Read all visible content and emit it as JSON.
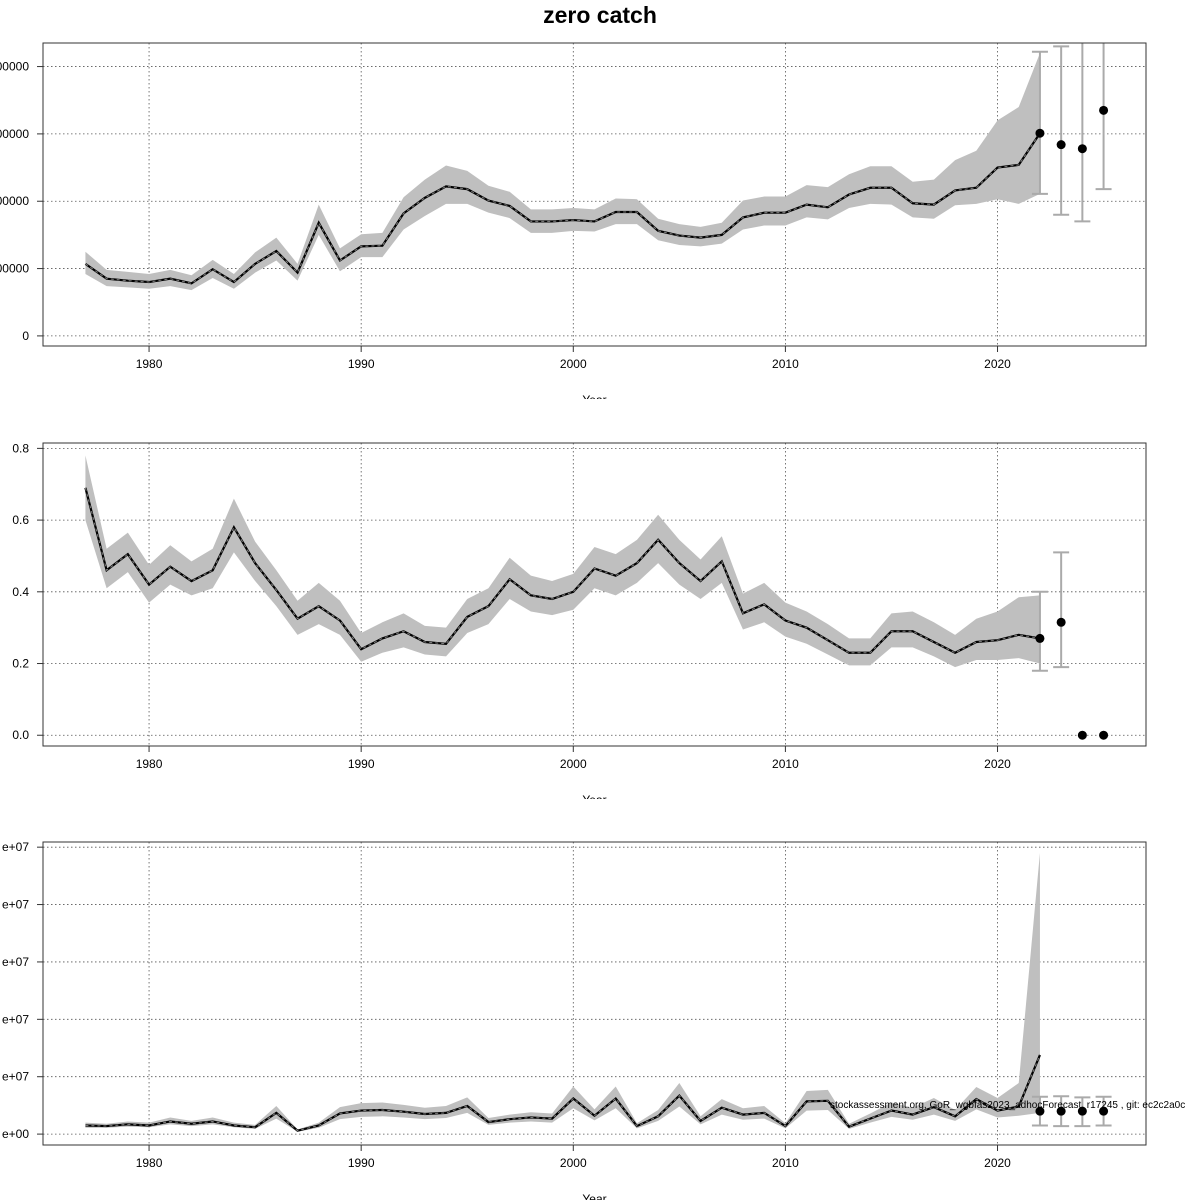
{
  "title": "zero catch",
  "watermark": "stockassessment.org, GoR_wgbfas2023_adhocForecast, r17245 , git: ec2c2a0c",
  "chart_data": [
    {
      "type": "area",
      "name": "top-panel",
      "xlabel": "Year",
      "xlim": [
        1975,
        2027
      ],
      "ylim": [
        -15000,
        435000
      ],
      "xticks": [
        1980,
        1990,
        2000,
        2010,
        2020
      ],
      "yticks": [
        0,
        100000,
        200000,
        300000,
        400000
      ],
      "ytick_labels": [
        "0",
        "00000",
        "00000",
        "00000",
        "00000"
      ],
      "grid": true,
      "years": [
        1977,
        1978,
        1979,
        1980,
        1981,
        1982,
        1983,
        1984,
        1985,
        1986,
        1987,
        1988,
        1989,
        1990,
        1991,
        1992,
        1993,
        1994,
        1995,
        1996,
        1997,
        1998,
        1999,
        2000,
        2001,
        2002,
        2003,
        2004,
        2005,
        2006,
        2007,
        2008,
        2009,
        2010,
        2011,
        2012,
        2013,
        2014,
        2015,
        2016,
        2017,
        2018,
        2019,
        2020,
        2021,
        2022
      ],
      "estimate": [
        107000,
        85000,
        82000,
        80000,
        85000,
        78000,
        99000,
        80000,
        107000,
        126000,
        94000,
        168000,
        112000,
        133000,
        134000,
        182000,
        205000,
        222000,
        218000,
        201000,
        193000,
        170000,
        170000,
        172000,
        170000,
        184000,
        184000,
        156000,
        149000,
        146000,
        150000,
        176000,
        183000,
        183000,
        195000,
        191000,
        210000,
        220000,
        220000,
        197000,
        195000,
        216000,
        220000,
        250000,
        254000,
        301000
      ],
      "lower": [
        92000,
        74000,
        72000,
        70000,
        74000,
        68000,
        86000,
        70000,
        94000,
        112000,
        82000,
        150000,
        96000,
        117000,
        117000,
        158000,
        178000,
        196000,
        196000,
        183000,
        175000,
        153000,
        153000,
        156000,
        155000,
        166000,
        166000,
        142000,
        135000,
        133000,
        137000,
        158000,
        164000,
        164000,
        176000,
        173000,
        190000,
        196000,
        195000,
        176000,
        174000,
        194000,
        196000,
        203000,
        196000,
        211000
      ],
      "upper": [
        125000,
        98000,
        95000,
        92000,
        98000,
        90000,
        113000,
        92000,
        124000,
        146000,
        107000,
        195000,
        130000,
        151000,
        153000,
        206000,
        232000,
        253000,
        245000,
        223000,
        214000,
        188000,
        188000,
        190000,
        188000,
        204000,
        203000,
        174000,
        166000,
        162000,
        168000,
        201000,
        207000,
        207000,
        224000,
        221000,
        240000,
        252000,
        252000,
        229000,
        232000,
        261000,
        275000,
        320000,
        340000,
        420000
      ],
      "forecast": [
        {
          "x": 2022,
          "y": 301000,
          "lo": 211000,
          "hi": 422000
        },
        {
          "x": 2023,
          "y": 284000,
          "lo": 180000,
          "hi": 430000
        },
        {
          "x": 2024,
          "y": 278000,
          "lo": 170000,
          "hi": 440000
        },
        {
          "x": 2025,
          "y": 335000,
          "lo": 218000,
          "hi": 455000
        }
      ]
    },
    {
      "type": "area",
      "name": "middle-panel",
      "xlabel": "Year",
      "xlim": [
        1975,
        2027
      ],
      "ylim": [
        -0.03,
        0.815
      ],
      "xticks": [
        1980,
        1990,
        2000,
        2010,
        2020
      ],
      "yticks": [
        0.0,
        0.2,
        0.4,
        0.6,
        0.8
      ],
      "ytick_labels": [
        "0.0",
        "0.2",
        "0.4",
        "0.6",
        "0.8"
      ],
      "grid": true,
      "years": [
        1977,
        1978,
        1979,
        1980,
        1981,
        1982,
        1983,
        1984,
        1985,
        1986,
        1987,
        1988,
        1989,
        1990,
        1991,
        1992,
        1993,
        1994,
        1995,
        1996,
        1997,
        1998,
        1999,
        2000,
        2001,
        2002,
        2003,
        2004,
        2005,
        2006,
        2007,
        2008,
        2009,
        2010,
        2011,
        2012,
        2013,
        2014,
        2015,
        2016,
        2017,
        2018,
        2019,
        2020,
        2021,
        2022
      ],
      "estimate": [
        0.69,
        0.46,
        0.505,
        0.42,
        0.47,
        0.43,
        0.46,
        0.58,
        0.48,
        0.405,
        0.325,
        0.36,
        0.32,
        0.24,
        0.27,
        0.29,
        0.26,
        0.255,
        0.33,
        0.36,
        0.435,
        0.39,
        0.38,
        0.4,
        0.465,
        0.445,
        0.48,
        0.545,
        0.48,
        0.43,
        0.485,
        0.34,
        0.365,
        0.32,
        0.3,
        0.265,
        0.23,
        0.23,
        0.29,
        0.29,
        0.26,
        0.23,
        0.26,
        0.265,
        0.28,
        0.27
      ],
      "lower": [
        0.6,
        0.41,
        0.455,
        0.37,
        0.42,
        0.39,
        0.41,
        0.51,
        0.43,
        0.36,
        0.28,
        0.31,
        0.28,
        0.205,
        0.23,
        0.245,
        0.225,
        0.22,
        0.285,
        0.31,
        0.38,
        0.345,
        0.335,
        0.35,
        0.41,
        0.39,
        0.425,
        0.48,
        0.42,
        0.38,
        0.425,
        0.295,
        0.315,
        0.275,
        0.255,
        0.225,
        0.195,
        0.195,
        0.245,
        0.245,
        0.22,
        0.19,
        0.21,
        0.21,
        0.215,
        0.2
      ],
      "upper": [
        0.78,
        0.52,
        0.565,
        0.475,
        0.53,
        0.485,
        0.52,
        0.66,
        0.54,
        0.46,
        0.375,
        0.425,
        0.375,
        0.285,
        0.315,
        0.34,
        0.305,
        0.3,
        0.38,
        0.41,
        0.495,
        0.445,
        0.43,
        0.45,
        0.525,
        0.505,
        0.545,
        0.615,
        0.545,
        0.49,
        0.555,
        0.395,
        0.425,
        0.37,
        0.345,
        0.31,
        0.27,
        0.27,
        0.34,
        0.345,
        0.315,
        0.28,
        0.325,
        0.345,
        0.385,
        0.39
      ],
      "forecast": [
        {
          "x": 2022,
          "y": 0.27,
          "lo": 0.18,
          "hi": 0.4
        },
        {
          "x": 2023,
          "y": 0.315,
          "lo": 0.19,
          "hi": 0.51
        },
        {
          "x": 2024,
          "y": 0.0,
          "lo": null,
          "hi": null
        },
        {
          "x": 2025,
          "y": 0.0,
          "lo": null,
          "hi": null
        }
      ]
    },
    {
      "type": "area",
      "name": "bottom-panel",
      "xlabel": "Year",
      "xlim": [
        1975,
        2027
      ],
      "ylim": [
        -1900000,
        50900000
      ],
      "xticks": [
        1980,
        1990,
        2000,
        2010,
        2020
      ],
      "yticks": [
        0,
        10000000,
        20000000,
        30000000,
        40000000,
        50000000
      ],
      "ytick_labels": [
        "e+00",
        "e+07",
        "e+07",
        "e+07",
        "e+07",
        "e+07"
      ],
      "grid": true,
      "years": [
        1977,
        1978,
        1979,
        1980,
        1981,
        1982,
        1983,
        1984,
        1985,
        1986,
        1987,
        1988,
        1989,
        1990,
        1991,
        1992,
        1993,
        1994,
        1995,
        1996,
        1997,
        1998,
        1999,
        2000,
        2001,
        2002,
        2003,
        2004,
        2005,
        2006,
        2007,
        2008,
        2009,
        2010,
        2011,
        2012,
        2013,
        2014,
        2015,
        2016,
        2017,
        2018,
        2019,
        2020,
        2021,
        2022
      ],
      "estimate": [
        1500000,
        1400000,
        1700000,
        1500000,
        2200000,
        1800000,
        2200000,
        1500000,
        1200000,
        3700000,
        600000,
        1500000,
        3600000,
        4100000,
        4200000,
        3900000,
        3500000,
        3700000,
        4900000,
        2100000,
        2600000,
        2900000,
        2700000,
        6200000,
        3200000,
        6200000,
        1400000,
        3100000,
        6700000,
        2300000,
        4600000,
        3400000,
        3700000,
        1400000,
        5700000,
        5800000,
        1300000,
        2700000,
        4100000,
        3400000,
        4700000,
        3100000,
        6100000,
        4100000,
        4800000,
        13800000
      ],
      "lower": [
        1100000,
        1100000,
        1300000,
        1200000,
        1700000,
        1400000,
        1700000,
        1200000,
        900000,
        2700000,
        400000,
        1100000,
        2600000,
        3000000,
        3100000,
        2900000,
        2600000,
        2800000,
        3700000,
        1600000,
        2000000,
        2200000,
        2000000,
        4500000,
        2400000,
        4500000,
        1000000,
        2300000,
        4800000,
        1700000,
        3400000,
        2500000,
        2700000,
        1000000,
        4100000,
        4200000,
        900000,
        2000000,
        3000000,
        2500000,
        3400000,
        2300000,
        4300000,
        2900000,
        3200000,
        3700000
      ],
      "upper": [
        2000000,
        1800000,
        2200000,
        2000000,
        2900000,
        2300000,
        2900000,
        2000000,
        1600000,
        4900000,
        800000,
        2000000,
        4700000,
        5400000,
        5500000,
        5100000,
        4600000,
        4900000,
        6400000,
        2800000,
        3400000,
        3800000,
        3600000,
        8300000,
        4300000,
        8300000,
        1900000,
        4200000,
        8900000,
        3100000,
        6100000,
        4500000,
        4900000,
        1900000,
        7500000,
        7700000,
        1800000,
        3600000,
        5500000,
        4600000,
        6300000,
        4200000,
        8200000,
        6300000,
        8900000,
        49000000
      ],
      "forecast": [
        {
          "x": 2022,
          "y": 4000000,
          "lo": 1500000,
          "hi": 6500000
        },
        {
          "x": 2023,
          "y": 4000000,
          "lo": 1400000,
          "hi": 6600000
        },
        {
          "x": 2024,
          "y": 4000000,
          "lo": 1400000,
          "hi": 6400000
        },
        {
          "x": 2025,
          "y": 4000000,
          "lo": 1500000,
          "hi": 6500000
        }
      ]
    }
  ],
  "colors": {
    "band": "#bfbfbf",
    "line": "#000000",
    "dash": "#808080",
    "grid": "#555555",
    "errorbar": "#aaaaaa"
  }
}
